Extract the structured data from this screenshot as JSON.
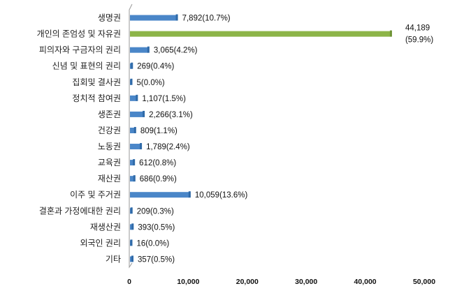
{
  "chart_data": {
    "type": "bar",
    "orientation": "horizontal",
    "title": "",
    "xlabel": "",
    "ylabel": "",
    "xlim": [
      0,
      50000
    ],
    "xticks": [
      "0",
      "10,000",
      "20,000",
      "30,000",
      "40,000",
      "50,000"
    ],
    "xtick_values": [
      0,
      10000,
      20000,
      30000,
      40000,
      50000
    ],
    "grid": false,
    "colors": {
      "default": "#4a86c8",
      "highlight": "#8db548"
    },
    "categories": [
      "생명권",
      "개인의 존엄성 및 자유권",
      "피의자와 구금자의 권리",
      "신념 및 표현의 권리",
      "집회및 결사권",
      "정치적 참여권",
      "생존권",
      "건강권",
      "노동권",
      "교육권",
      "재산권",
      "이주 및 주거권",
      "결혼과 가정에대한 권리",
      "재생산권",
      "외국인 권리",
      "기타"
    ],
    "values": [
      7892,
      44189,
      3065,
      269,
      5,
      1107,
      2266,
      809,
      1789,
      612,
      686,
      10059,
      209,
      393,
      16,
      357
    ],
    "percents": [
      10.7,
      59.9,
      4.2,
      0.4,
      0.0,
      1.5,
      3.1,
      1.1,
      2.4,
      0.8,
      0.9,
      13.6,
      0.3,
      0.5,
      0.0,
      0.5
    ],
    "labels": [
      "7,892(10.7%)",
      "44,189\n(59.9%)",
      "3,065(4.2%)",
      "269(0.4%)",
      "5(0.0%)",
      "1,107(1.5%)",
      "2,266(3.1%)",
      "809(1.1%)",
      "1,789(2.4%)",
      "612(0.8%)",
      "686(0.9%)",
      "10,059(13.6%)",
      "209(0.3%)",
      "393(0.5%)",
      "16(0.0%)",
      "357(0.5%)"
    ],
    "highlight_index": 1
  }
}
